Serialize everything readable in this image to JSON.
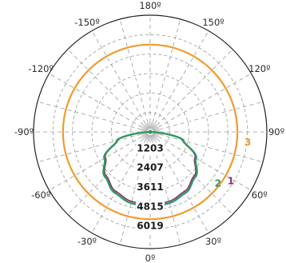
{
  "chart_data": {
    "type": "polar",
    "grid": true,
    "angular_ticks": [
      {
        "angle": 180,
        "label": "180º"
      },
      {
        "angle": 150,
        "label": "150º"
      },
      {
        "angle": 120,
        "label": "120º"
      },
      {
        "angle": 90,
        "label": "90º"
      },
      {
        "angle": 60,
        "label": "60º"
      },
      {
        "angle": 30,
        "label": "30º"
      },
      {
        "angle": 0,
        "label": "0º"
      },
      {
        "angle": -30,
        "label": "-30º"
      },
      {
        "angle": -60,
        "label": "-60º"
      },
      {
        "angle": -90,
        "label": "-90º"
      },
      {
        "angle": -120,
        "label": "-120º"
      },
      {
        "angle": -150,
        "label": "-150º"
      }
    ],
    "radial_ticks": [
      "1203",
      "2407",
      "3611",
      "4815",
      "6019"
    ],
    "radial_max": 7222,
    "series": [
      {
        "name": "1",
        "color": "#8b2f6e",
        "values": [
          [
            0,
            4500
          ],
          [
            15,
            4450
          ],
          [
            30,
            4250
          ],
          [
            45,
            3850
          ],
          [
            60,
            3200
          ],
          [
            75,
            2100
          ],
          [
            90,
            0
          ],
          [
            -15,
            4450
          ],
          [
            -30,
            4250
          ],
          [
            -45,
            3850
          ],
          [
            -60,
            3200
          ],
          [
            -75,
            2100
          ],
          [
            -90,
            0
          ]
        ]
      },
      {
        "name": "2",
        "color": "#2e9a5e",
        "values": [
          [
            0,
            4620
          ],
          [
            15,
            4560
          ],
          [
            30,
            4360
          ],
          [
            45,
            3950
          ],
          [
            60,
            3280
          ],
          [
            75,
            2150
          ],
          [
            90,
            0
          ],
          [
            -15,
            4560
          ],
          [
            -30,
            4360
          ],
          [
            -45,
            3950
          ],
          [
            -60,
            3280
          ],
          [
            -75,
            2150
          ],
          [
            -90,
            0
          ]
        ]
      },
      {
        "name": "3",
        "color": "#f29a2e",
        "values": [
          [
            0,
            5400
          ],
          [
            30,
            5400
          ],
          [
            60,
            5400
          ],
          [
            90,
            5400
          ],
          [
            120,
            5400
          ],
          [
            150,
            5400
          ],
          [
            180,
            5400
          ],
          [
            -30,
            5400
          ],
          [
            -60,
            5400
          ],
          [
            -90,
            5400
          ],
          [
            -120,
            5400
          ],
          [
            -150,
            5400
          ]
        ]
      }
    ]
  }
}
